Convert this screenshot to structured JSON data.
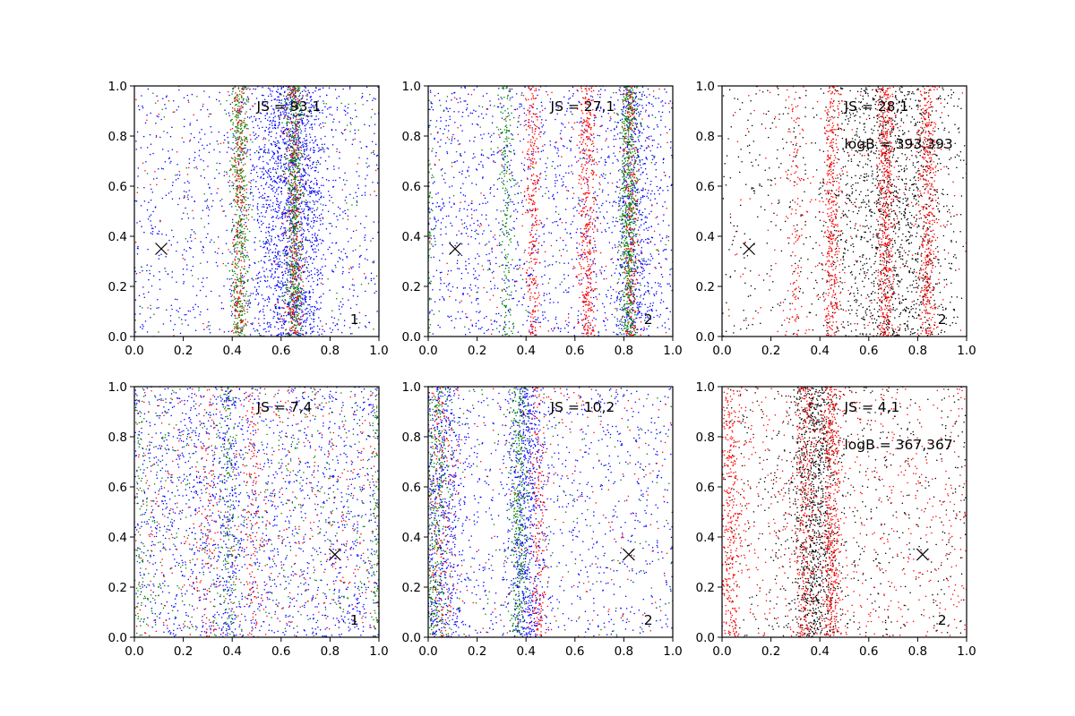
{
  "colors": {
    "blue": "#0000ff",
    "green": "#008000",
    "red": "#ff0000",
    "black": "#000000"
  },
  "chart_data": [
    {
      "type": "scatter",
      "xlim": [
        0,
        1
      ],
      "ylim": [
        0,
        1
      ],
      "x_ticks": [
        "0.0",
        "0.2",
        "0.4",
        "0.6",
        "0.8",
        "1.0"
      ],
      "y_ticks": [
        "0.0",
        "0.2",
        "0.4",
        "0.6",
        "0.8",
        "1.0"
      ],
      "annotations": [
        "JS = 93,1"
      ],
      "corner_label": "1",
      "marker": {
        "symbol": "x",
        "x": 0.11,
        "y": 0.35
      },
      "series": [
        {
          "color": "blue",
          "bands": [
            [
              0.64,
              0.08,
              1600
            ],
            [
              0.5,
              0.5,
              900
            ]
          ]
        },
        {
          "color": "green",
          "bands": [
            [
              0.43,
              0.018,
              500
            ],
            [
              0.655,
              0.018,
              600
            ],
            [
              0.5,
              0.5,
              150
            ]
          ]
        },
        {
          "color": "red",
          "bands": [
            [
              0.43,
              0.018,
              250
            ],
            [
              0.655,
              0.018,
              300
            ],
            [
              0.5,
              0.5,
              100
            ]
          ]
        }
      ]
    },
    {
      "type": "scatter",
      "xlim": [
        0,
        1
      ],
      "ylim": [
        0,
        1
      ],
      "x_ticks": [
        "0.0",
        "0.2",
        "0.4",
        "0.6",
        "0.8",
        "1.0"
      ],
      "y_ticks": [
        "0.0",
        "0.2",
        "0.4",
        "0.6",
        "0.8",
        "1.0"
      ],
      "annotations": [
        "JS = 27,1"
      ],
      "corner_label": "2",
      "marker": {
        "symbol": "x",
        "x": 0.11,
        "y": 0.35
      },
      "series": [
        {
          "color": "blue",
          "bands": [
            [
              0.5,
              0.5,
              1400
            ],
            [
              0.84,
              0.04,
              500
            ]
          ]
        },
        {
          "color": "green",
          "bands": [
            [
              0.82,
              0.018,
              700
            ],
            [
              0.32,
              0.015,
              200
            ],
            [
              0.0,
              0.01,
              100
            ],
            [
              0.5,
              0.5,
              100
            ]
          ]
        },
        {
          "color": "red",
          "bands": [
            [
              0.43,
              0.015,
              300
            ],
            [
              0.65,
              0.018,
              450
            ],
            [
              0.83,
              0.015,
              250
            ],
            [
              0.5,
              0.5,
              150
            ]
          ]
        }
      ]
    },
    {
      "type": "scatter",
      "xlim": [
        0,
        1
      ],
      "ylim": [
        0,
        1
      ],
      "x_ticks": [
        "0.0",
        "0.2",
        "0.4",
        "0.6",
        "0.8",
        "1.0"
      ],
      "y_ticks": [
        "0.0",
        "0.2",
        "0.4",
        "0.6",
        "0.8",
        "1.0"
      ],
      "annotations": [
        "JS = 28,1",
        "logB = 393,393"
      ],
      "corner_label": "2",
      "marker": {
        "symbol": "x",
        "x": 0.11,
        "y": 0.35
      },
      "series": [
        {
          "color": "black",
          "bands": [
            [
              0.7,
              0.13,
              1300
            ],
            [
              0.5,
              0.5,
              500
            ]
          ]
        },
        {
          "color": "red",
          "bands": [
            [
              0.45,
              0.018,
              400
            ],
            [
              0.67,
              0.018,
              550
            ],
            [
              0.84,
              0.018,
              450
            ],
            [
              0.3,
              0.02,
              120
            ],
            [
              0.5,
              0.5,
              200
            ]
          ]
        }
      ]
    },
    {
      "type": "scatter",
      "xlim": [
        0,
        1
      ],
      "ylim": [
        0,
        1
      ],
      "x_ticks": [
        "0.0",
        "0.2",
        "0.4",
        "0.6",
        "0.8",
        "1.0"
      ],
      "y_ticks": [
        "0.0",
        "0.2",
        "0.4",
        "0.6",
        "0.8",
        "1.0"
      ],
      "annotations": [
        "JS = 7,4"
      ],
      "corner_label": "1",
      "marker": {
        "symbol": "x",
        "x": 0.82,
        "y": 0.33
      },
      "series": [
        {
          "color": "blue",
          "bands": [
            [
              0.5,
              0.5,
              1700
            ],
            [
              0.38,
              0.03,
              200
            ]
          ]
        },
        {
          "color": "green",
          "bands": [
            [
              0.5,
              0.5,
              500
            ],
            [
              0.38,
              0.02,
              150
            ],
            [
              0.99,
              0.01,
              100
            ],
            [
              0.02,
              0.015,
              80
            ]
          ]
        },
        {
          "color": "red",
          "bands": [
            [
              0.5,
              0.5,
              500
            ],
            [
              0.48,
              0.02,
              120
            ],
            [
              0.3,
              0.02,
              80
            ]
          ]
        }
      ]
    },
    {
      "type": "scatter",
      "xlim": [
        0,
        1
      ],
      "ylim": [
        0,
        1
      ],
      "x_ticks": [
        "0.0",
        "0.2",
        "0.4",
        "0.6",
        "0.8",
        "1.0"
      ],
      "y_ticks": [
        "0.0",
        "0.2",
        "0.4",
        "0.6",
        "0.8",
        "1.0"
      ],
      "annotations": [
        "JS = 10,2"
      ],
      "corner_label": "2",
      "marker": {
        "symbol": "x",
        "x": 0.82,
        "y": 0.33
      },
      "series": [
        {
          "color": "blue",
          "bands": [
            [
              0.4,
              0.04,
              700
            ],
            [
              0.05,
              0.05,
              600
            ],
            [
              0.5,
              0.5,
              900
            ]
          ]
        },
        {
          "color": "green",
          "bands": [
            [
              0.37,
              0.02,
              350
            ],
            [
              0.03,
              0.03,
              400
            ],
            [
              0.5,
              0.5,
              150
            ]
          ]
        },
        {
          "color": "red",
          "bands": [
            [
              0.45,
              0.02,
              200
            ],
            [
              0.05,
              0.04,
              200
            ],
            [
              0.5,
              0.5,
              200
            ]
          ]
        }
      ]
    },
    {
      "type": "scatter",
      "xlim": [
        0,
        1
      ],
      "ylim": [
        0,
        1
      ],
      "x_ticks": [
        "0.0",
        "0.2",
        "0.4",
        "0.6",
        "0.8",
        "1.0"
      ],
      "y_ticks": [
        "0.0",
        "0.2",
        "0.4",
        "0.6",
        "0.8",
        "1.0"
      ],
      "annotations": [
        "JS = 4,1",
        "logB = 367,367"
      ],
      "corner_label": "2",
      "marker": {
        "symbol": "x",
        "x": 0.82,
        "y": 0.33
      },
      "series": [
        {
          "color": "black",
          "bands": [
            [
              0.38,
              0.05,
              1000
            ],
            [
              0.5,
              0.5,
              600
            ]
          ]
        },
        {
          "color": "red",
          "bands": [
            [
              0.45,
              0.02,
              500
            ],
            [
              0.34,
              0.02,
              300
            ],
            [
              0.03,
              0.025,
              350
            ],
            [
              0.5,
              0.5,
              700
            ]
          ]
        }
      ]
    }
  ]
}
